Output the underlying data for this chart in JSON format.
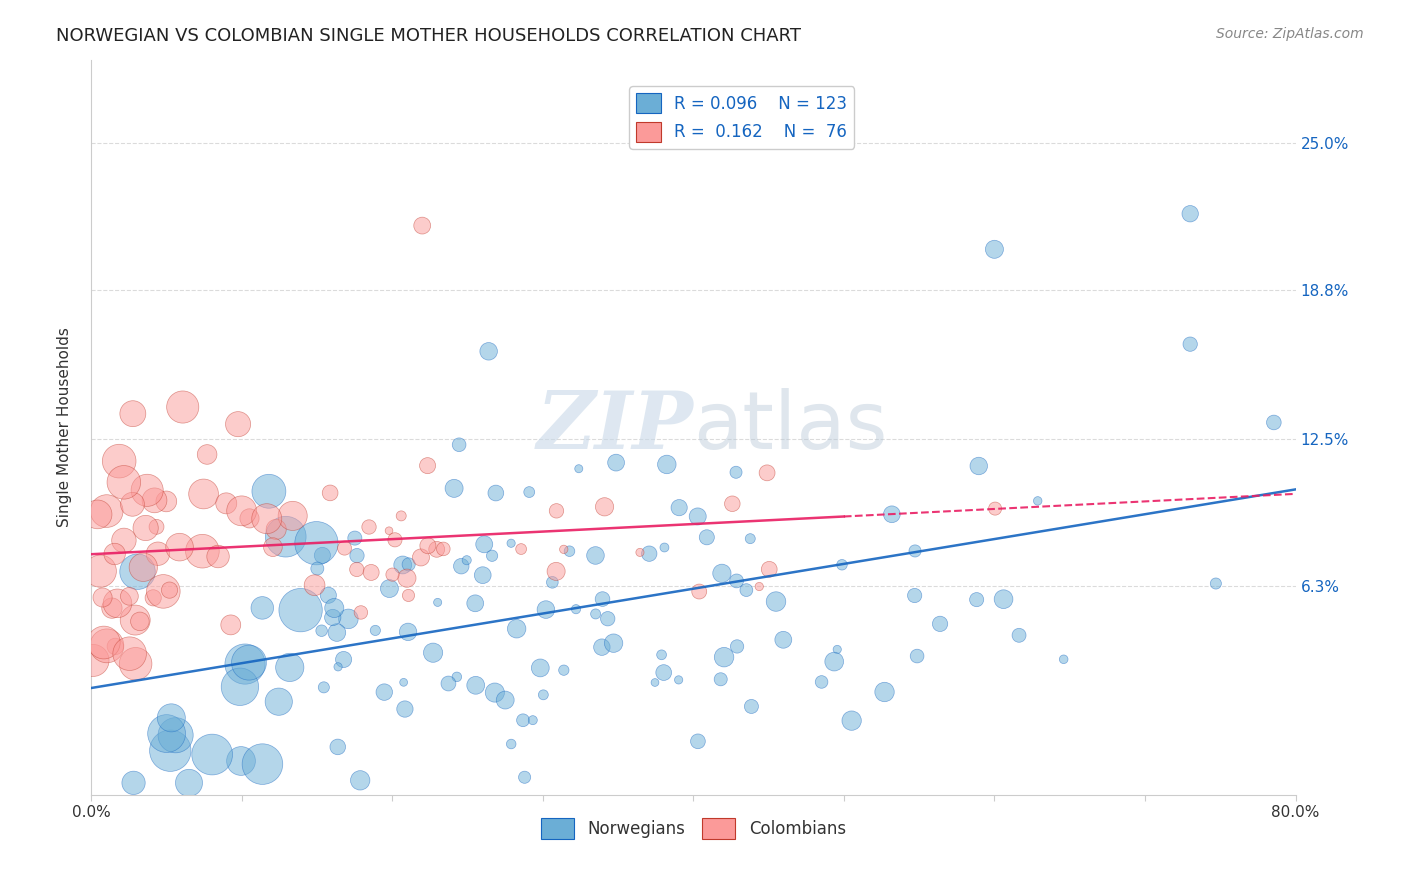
{
  "title": "NORWEGIAN VS COLOMBIAN SINGLE MOTHER HOUSEHOLDS CORRELATION CHART",
  "source": "Source: ZipAtlas.com",
  "ylabel": "Single Mother Households",
  "xlim": [
    0.0,
    0.8
  ],
  "ylim": [
    -0.025,
    0.285
  ],
  "ytick_labels": [
    "6.3%",
    "12.5%",
    "18.8%",
    "25.0%"
  ],
  "ytick_values": [
    0.063,
    0.125,
    0.188,
    0.25
  ],
  "grid_color": "#cccccc",
  "background_color": "#ffffff",
  "norwegian_color": "#6baed6",
  "colombian_color": "#fb9a99",
  "norwegian_line_color": "#1565c0",
  "colombian_line_color": "#e91e63",
  "legend_R_N_color": "#1565c0",
  "watermark_ZIP": "ZIP",
  "watermark_atlas": "atlas",
  "R_norwegian": 0.096,
  "N_norwegian": 123,
  "R_colombian": 0.162,
  "N_colombian": 76,
  "seed": 42,
  "title_fontsize": 13,
  "source_fontsize": 10,
  "axis_label_fontsize": 11,
  "tick_fontsize": 11,
  "legend_fontsize": 12
}
